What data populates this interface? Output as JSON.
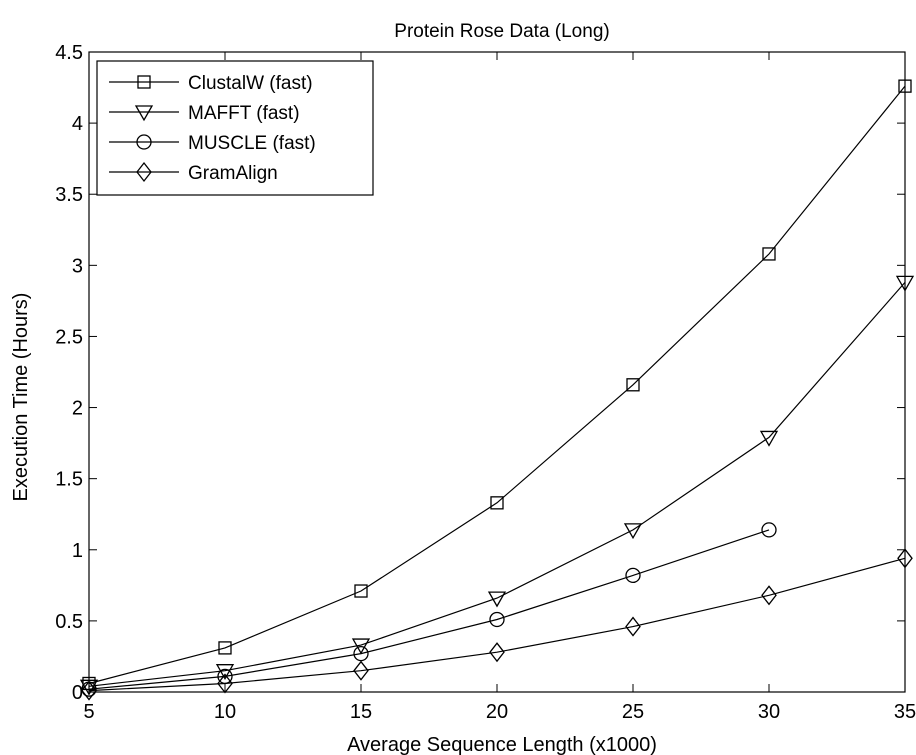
{
  "chart_data": {
    "type": "line",
    "title": "Protein Rose Data (Long)",
    "xlabel": "Average Sequence Length (x1000)",
    "ylabel": "Execution Time (Hours)",
    "xlim": [
      5,
      35
    ],
    "ylim": [
      0,
      4.5
    ],
    "xticks": [
      "5",
      "10",
      "15",
      "20",
      "25",
      "30",
      "35"
    ],
    "yticks": [
      "0",
      "0.5",
      "1",
      "1.5",
      "2",
      "2.5",
      "3",
      "3.5",
      "4",
      "4.5"
    ],
    "grid": false,
    "legend_position": "top-left",
    "series": [
      {
        "name": "ClustalW (fast)",
        "marker": "square",
        "x": [
          5,
          10,
          15,
          20,
          25,
          30,
          35
        ],
        "y": [
          0.06,
          0.31,
          0.71,
          1.33,
          2.16,
          3.08,
          4.26
        ]
      },
      {
        "name": "MAFFT (fast)",
        "marker": "triangle-down",
        "x": [
          5,
          10,
          15,
          20,
          25,
          30,
          35
        ],
        "y": [
          0.04,
          0.15,
          0.33,
          0.66,
          1.14,
          1.79,
          2.88
        ]
      },
      {
        "name": "MUSCLE (fast)",
        "marker": "circle",
        "x": [
          5,
          10,
          15,
          20,
          25,
          30
        ],
        "y": [
          0.02,
          0.11,
          0.27,
          0.51,
          0.82,
          1.14
        ]
      },
      {
        "name": "GramAlign",
        "marker": "diamond",
        "x": [
          5,
          10,
          15,
          20,
          25,
          30,
          35
        ],
        "y": [
          0.01,
          0.06,
          0.15,
          0.28,
          0.46,
          0.68,
          0.94
        ]
      }
    ]
  }
}
